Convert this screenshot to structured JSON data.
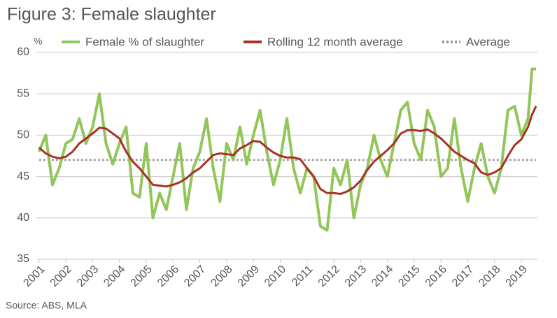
{
  "chart_data": {
    "type": "line",
    "title": "Figure 3: Female slaughter",
    "y_label": "%",
    "source": "Source: ABS, MLA",
    "x": [
      2001.0,
      2001.25,
      2001.5,
      2001.75,
      2002.0,
      2002.25,
      2002.5,
      2002.75,
      2003.0,
      2003.25,
      2003.5,
      2003.75,
      2004.0,
      2004.25,
      2004.5,
      2004.75,
      2005.0,
      2005.25,
      2005.5,
      2005.75,
      2006.0,
      2006.25,
      2006.5,
      2006.75,
      2007.0,
      2007.25,
      2007.5,
      2007.75,
      2008.0,
      2008.25,
      2008.5,
      2008.75,
      2009.0,
      2009.25,
      2009.5,
      2009.75,
      2010.0,
      2010.25,
      2010.5,
      2010.75,
      2011.0,
      2011.25,
      2011.5,
      2011.75,
      2012.0,
      2012.25,
      2012.5,
      2012.75,
      2013.0,
      2013.25,
      2013.5,
      2013.75,
      2014.0,
      2014.25,
      2014.5,
      2014.75,
      2015.0,
      2015.25,
      2015.5,
      2015.75,
      2016.0,
      2016.25,
      2016.5,
      2016.75,
      2017.0,
      2017.25,
      2017.5,
      2017.75,
      2018.0,
      2018.25,
      2018.5,
      2018.75,
      2019.0,
      2019.25,
      2019.4,
      2019.55
    ],
    "series": [
      {
        "name": "Female % of slaughter",
        "color": "#92c65a",
        "values": [
          48,
          50,
          44,
          46,
          49,
          49.5,
          52,
          49,
          51,
          55,
          49,
          46.5,
          49,
          51,
          43,
          42.5,
          49,
          40,
          43,
          41,
          45,
          49,
          41,
          46,
          48,
          52,
          46,
          42,
          49,
          47,
          51,
          46.5,
          50,
          53,
          48,
          44,
          47,
          52,
          46,
          43,
          46,
          45,
          39,
          38.5,
          46,
          44,
          47,
          40,
          44,
          46,
          50,
          47,
          45,
          49,
          53,
          54,
          49,
          47,
          53,
          51,
          45,
          46,
          52,
          46,
          42,
          46,
          49,
          45,
          43,
          46,
          53,
          53.5,
          50,
          52,
          58,
          58
        ]
      },
      {
        "name": "Rolling 12 month average",
        "color": "#a93226",
        "values": [
          48.5,
          47.8,
          47.4,
          47.2,
          47.4,
          48,
          49,
          49.6,
          50.2,
          50.9,
          50.8,
          50.2,
          49.6,
          48,
          46.8,
          46,
          45,
          44,
          43.9,
          43.8,
          44,
          44.3,
          44.8,
          45.5,
          46,
          46.8,
          47.6,
          47.8,
          47.7,
          47.6,
          48.4,
          48.8,
          49.3,
          49.2,
          48.5,
          47.9,
          47.5,
          47.3,
          47.3,
          47.1,
          46,
          45,
          43.5,
          43,
          43,
          42.9,
          43.2,
          43.7,
          44.5,
          45.8,
          46.8,
          47.5,
          48.2,
          49,
          50.2,
          50.6,
          50.6,
          50.5,
          50.7,
          50.2,
          49.6,
          48.8,
          48,
          47.5,
          47,
          46.6,
          45.5,
          45.2,
          45.5,
          46,
          47.5,
          48.8,
          49.5,
          51,
          52.5,
          53.5
        ]
      }
    ],
    "reference_line": {
      "name": "Average",
      "value": 47,
      "color": "#999999"
    },
    "xlim": [
      2000.9,
      2019.6
    ],
    "xticks": [
      2001,
      2002,
      2003,
      2004,
      2005,
      2006,
      2007,
      2008,
      2009,
      2010,
      2011,
      2012,
      2013,
      2014,
      2015,
      2016,
      2017,
      2018,
      2019
    ],
    "ylim": [
      35,
      60
    ],
    "yticks": [
      35,
      40,
      45,
      50,
      55,
      60
    ],
    "grid": true
  }
}
